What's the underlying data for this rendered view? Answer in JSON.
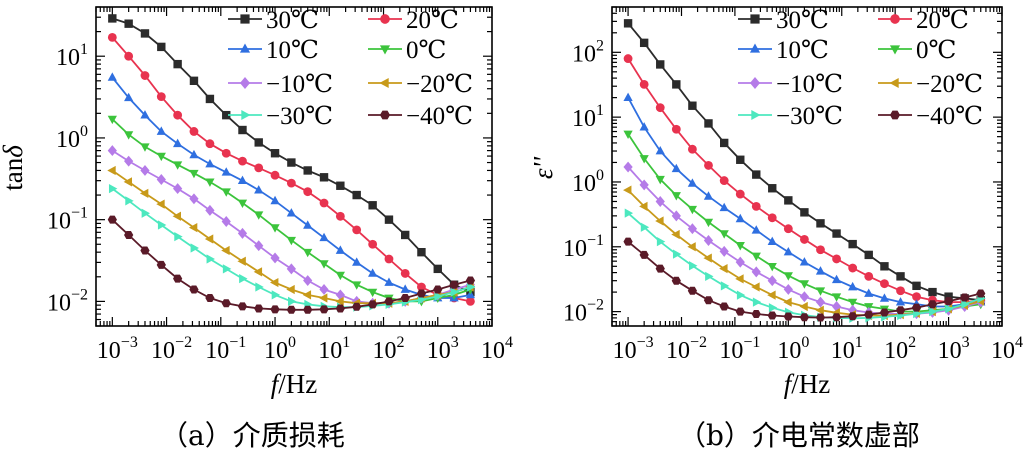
{
  "figure": {
    "captions": [
      "（a）介质损耗",
      "（b）介电常数虚部"
    ]
  },
  "legend_entries": [
    {
      "label": "30℃",
      "color": "#2b2b2b",
      "marker": "square"
    },
    {
      "label": "20℃",
      "color": "#e8334f",
      "marker": "circle"
    },
    {
      "label": "10℃",
      "color": "#2f6fe0",
      "marker": "triangle-up"
    },
    {
      "label": "0℃",
      "color": "#3cc43c",
      "marker": "triangle-down"
    },
    {
      "label": "−10℃",
      "color": "#b57be8",
      "marker": "diamond"
    },
    {
      "label": "−20℃",
      "color": "#c89a1a",
      "marker": "triangle-left"
    },
    {
      "label": "−30℃",
      "color": "#4de8bf",
      "marker": "triangle-right"
    },
    {
      "label": "−40℃",
      "color": "#5a1a28",
      "marker": "hexagon"
    }
  ],
  "chart_data": [
    {
      "type": "line",
      "title": "（a）介质损耗",
      "xlabel": "f/Hz",
      "ylabel": "tanδ",
      "xscale": "log",
      "yscale": "log",
      "xlim": [
        0.0005,
        10000
      ],
      "ylim": [
        0.005,
        40
      ],
      "xticks": [
        "10^-3",
        "10^-2",
        "10^-1",
        "10^0",
        "10^1",
        "10^2",
        "10^3",
        "10^4"
      ],
      "yticks": [
        "10^-2",
        "10^-1",
        "10^0",
        "10^1"
      ],
      "grid": false,
      "legend_position": "top-right",
      "x": [
        0.001,
        0.002,
        0.004,
        0.008,
        0.016,
        0.032,
        0.063,
        0.126,
        0.251,
        0.5,
        1,
        2,
        4,
        8,
        16,
        32,
        63,
        126,
        251,
        500,
        1000,
        2000,
        4000
      ],
      "series": [
        {
          "name": "30℃",
          "values": [
            29,
            25,
            19,
            13,
            8,
            5,
            3,
            1.9,
            1.25,
            0.88,
            0.65,
            0.5,
            0.4,
            0.33,
            0.26,
            0.2,
            0.15,
            0.1,
            0.065,
            0.04,
            0.025,
            0.016,
            0.013
          ]
        },
        {
          "name": "20℃",
          "values": [
            17,
            10,
            5.8,
            3.2,
            1.9,
            1.2,
            0.85,
            0.65,
            0.52,
            0.43,
            0.35,
            0.28,
            0.22,
            0.16,
            0.11,
            0.075,
            0.05,
            0.033,
            0.022,
            0.015,
            0.012,
            0.011,
            0.01
          ]
        },
        {
          "name": "10℃",
          "values": [
            5.5,
            3.1,
            1.9,
            1.2,
            0.85,
            0.62,
            0.48,
            0.38,
            0.3,
            0.23,
            0.17,
            0.12,
            0.085,
            0.06,
            0.042,
            0.03,
            0.022,
            0.017,
            0.014,
            0.012,
            0.011,
            0.011,
            0.012
          ]
        },
        {
          "name": "0℃",
          "values": [
            1.7,
            1.1,
            0.78,
            0.6,
            0.47,
            0.37,
            0.29,
            0.22,
            0.16,
            0.115,
            0.08,
            0.056,
            0.04,
            0.029,
            0.021,
            0.016,
            0.013,
            0.011,
            0.01,
            0.01,
            0.011,
            0.012,
            0.014
          ]
        },
        {
          "name": "−10℃",
          "values": [
            0.7,
            0.52,
            0.4,
            0.31,
            0.24,
            0.18,
            0.13,
            0.095,
            0.068,
            0.048,
            0.034,
            0.025,
            0.018,
            0.014,
            0.012,
            0.01,
            0.0095,
            0.0095,
            0.01,
            0.011,
            0.012,
            0.014,
            0.016
          ]
        },
        {
          "name": "−20℃",
          "values": [
            0.4,
            0.29,
            0.21,
            0.155,
            0.11,
            0.08,
            0.058,
            0.042,
            0.031,
            0.023,
            0.017,
            0.014,
            0.012,
            0.011,
            0.01,
            0.0095,
            0.0095,
            0.0095,
            0.01,
            0.011,
            0.012,
            0.013,
            0.015
          ]
        },
        {
          "name": "−30℃",
          "values": [
            0.24,
            0.17,
            0.12,
            0.086,
            0.062,
            0.045,
            0.033,
            0.025,
            0.019,
            0.015,
            0.012,
            0.01,
            0.0092,
            0.0087,
            0.0085,
            0.0085,
            0.0088,
            0.0092,
            0.0098,
            0.0105,
            0.0115,
            0.013,
            0.015
          ]
        },
        {
          "name": "−40℃",
          "values": [
            0.1,
            0.065,
            0.042,
            0.028,
            0.019,
            0.014,
            0.011,
            0.0095,
            0.0087,
            0.0082,
            0.008,
            0.0079,
            0.0079,
            0.008,
            0.0082,
            0.0086,
            0.0092,
            0.01,
            0.011,
            0.0125,
            0.014,
            0.016,
            0.018
          ]
        }
      ]
    },
    {
      "type": "line",
      "title": "（b）介电常数虚部",
      "xlabel": "f/Hz",
      "ylabel": "ε''",
      "xscale": "log",
      "yscale": "log",
      "xlim": [
        0.0005,
        10000
      ],
      "ylim": [
        0.006,
        500
      ],
      "xticks": [
        "10^-3",
        "10^-2",
        "10^-1",
        "10^0",
        "10^1",
        "10^2",
        "10^3",
        "10^4"
      ],
      "yticks": [
        "10^-2",
        "10^-1",
        "10^0",
        "10^1",
        "10^2"
      ],
      "grid": false,
      "legend_position": "top-right",
      "x": [
        0.001,
        0.002,
        0.004,
        0.008,
        0.016,
        0.032,
        0.063,
        0.126,
        0.251,
        0.5,
        1,
        2,
        4,
        8,
        16,
        32,
        63,
        126,
        251,
        500,
        1000,
        2000,
        4000
      ],
      "series": [
        {
          "name": "30℃",
          "values": [
            280,
            140,
            65,
            32,
            15,
            8,
            4,
            2.2,
            1.3,
            0.8,
            0.52,
            0.34,
            0.23,
            0.16,
            0.11,
            0.075,
            0.05,
            0.035,
            0.025,
            0.02,
            0.017,
            0.016,
            0.015
          ]
        },
        {
          "name": "20℃",
          "values": [
            80,
            32,
            14,
            6.5,
            3.2,
            1.8,
            1.05,
            0.65,
            0.42,
            0.28,
            0.19,
            0.13,
            0.09,
            0.065,
            0.047,
            0.035,
            0.027,
            0.021,
            0.017,
            0.015,
            0.014,
            0.014,
            0.015
          ]
        },
        {
          "name": "10℃",
          "values": [
            20,
            7,
            3,
            1.6,
            0.95,
            0.6,
            0.4,
            0.27,
            0.18,
            0.12,
            0.083,
            0.058,
            0.042,
            0.031,
            0.024,
            0.019,
            0.016,
            0.014,
            0.013,
            0.012,
            0.012,
            0.013,
            0.014
          ]
        },
        {
          "name": "0℃",
          "values": [
            5.5,
            2.3,
            1.1,
            0.62,
            0.38,
            0.24,
            0.16,
            0.105,
            0.072,
            0.05,
            0.036,
            0.027,
            0.021,
            0.017,
            0.014,
            0.012,
            0.011,
            0.01,
            0.01,
            0.0105,
            0.011,
            0.012,
            0.013
          ]
        },
        {
          "name": "−10℃",
          "values": [
            1.7,
            0.9,
            0.5,
            0.3,
            0.19,
            0.125,
            0.085,
            0.058,
            0.041,
            0.03,
            0.022,
            0.017,
            0.014,
            0.012,
            0.0105,
            0.0097,
            0.0093,
            0.0092,
            0.0093,
            0.0097,
            0.0105,
            0.012,
            0.014
          ]
        },
        {
          "name": "−20℃",
          "values": [
            0.75,
            0.42,
            0.25,
            0.155,
            0.1,
            0.067,
            0.046,
            0.032,
            0.024,
            0.018,
            0.014,
            0.012,
            0.0105,
            0.0096,
            0.009,
            0.0087,
            0.0087,
            0.009,
            0.0094,
            0.01,
            0.011,
            0.0125,
            0.0145
          ]
        },
        {
          "name": "−30℃",
          "values": [
            0.33,
            0.2,
            0.12,
            0.077,
            0.051,
            0.035,
            0.025,
            0.018,
            0.014,
            0.0115,
            0.0098,
            0.0088,
            0.0082,
            0.008,
            0.0079,
            0.008,
            0.0083,
            0.0087,
            0.0093,
            0.01,
            0.011,
            0.013,
            0.016
          ]
        },
        {
          "name": "−40℃",
          "values": [
            0.12,
            0.075,
            0.046,
            0.03,
            0.021,
            0.015,
            0.012,
            0.01,
            0.0092,
            0.0087,
            0.0084,
            0.0082,
            0.0081,
            0.0082,
            0.0085,
            0.009,
            0.0097,
            0.0105,
            0.0115,
            0.013,
            0.0145,
            0.0165,
            0.019
          ]
        }
      ]
    }
  ]
}
